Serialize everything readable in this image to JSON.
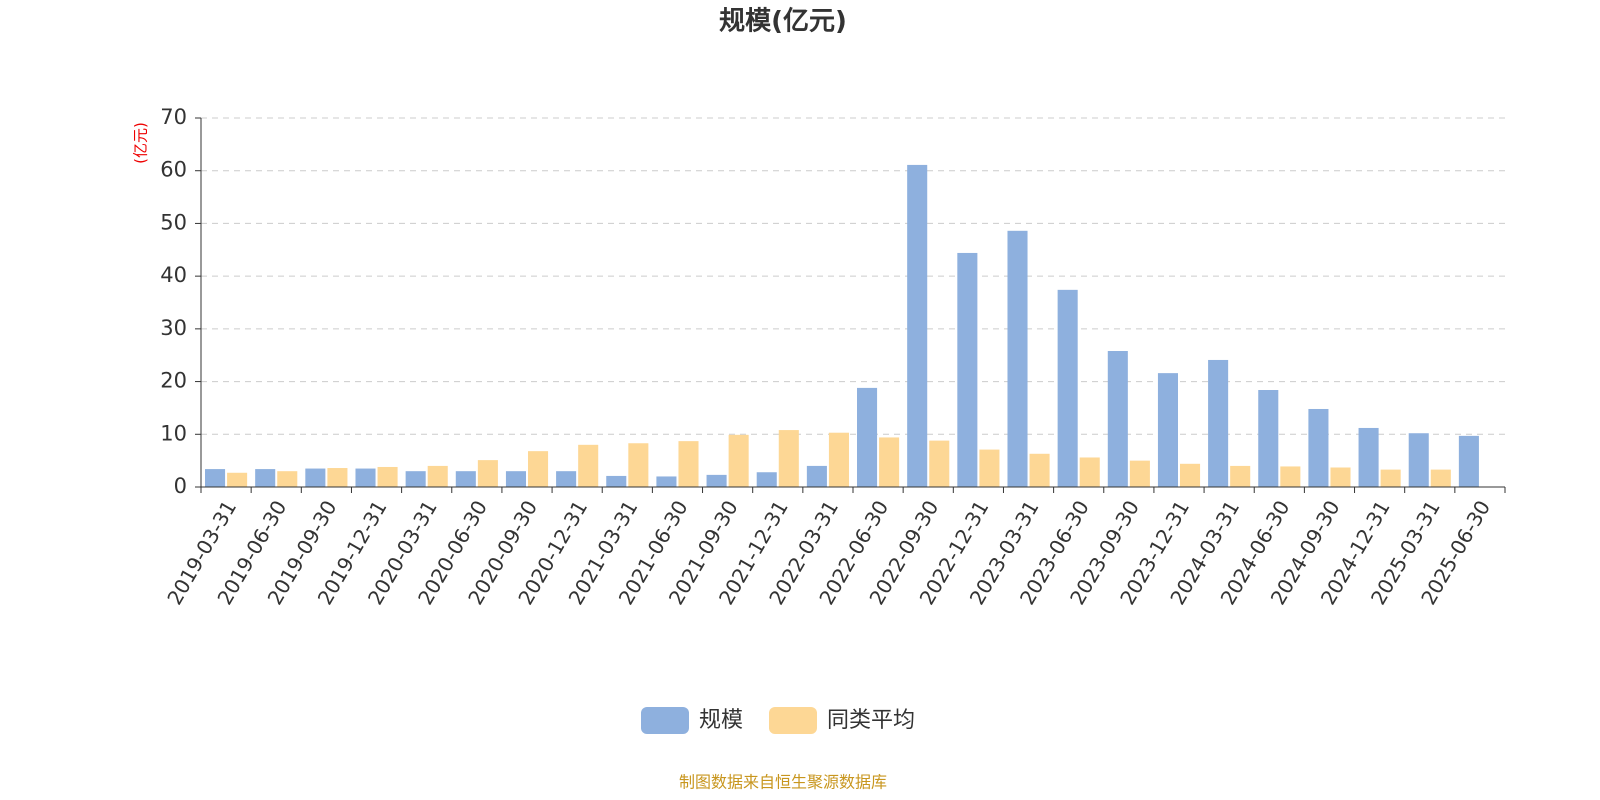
{
  "chart_data": {
    "type": "bar",
    "title": "规模(亿元)",
    "y_label": "(亿元)",
    "source_note": "制图数据来自恒生聚源数据库",
    "categories": [
      "2019-03-31",
      "2019-06-30",
      "2019-09-30",
      "2019-12-31",
      "2020-03-31",
      "2020-06-30",
      "2020-09-30",
      "2020-12-31",
      "2021-03-31",
      "2021-06-30",
      "2021-09-30",
      "2021-12-31",
      "2022-03-31",
      "2022-06-30",
      "2022-09-30",
      "2022-12-31",
      "2023-03-31",
      "2023-06-30",
      "2023-09-30",
      "2023-12-31",
      "2024-03-31",
      "2024-06-30",
      "2024-09-30",
      "2024-12-31",
      "2025-03-31",
      "2025-06-30"
    ],
    "series": [
      {
        "name": "规模",
        "color": "#8eb0de",
        "values": [
          3.4,
          3.4,
          3.5,
          3.5,
          3.0,
          3.0,
          3.0,
          3.0,
          2.1,
          2.0,
          2.3,
          2.8,
          4.0,
          18.8,
          61.1,
          44.4,
          48.6,
          37.4,
          25.8,
          21.6,
          24.1,
          18.4,
          14.8,
          11.2,
          10.2,
          9.7
        ]
      },
      {
        "name": "同类平均",
        "color": "#fdd795",
        "values": [
          2.7,
          3.0,
          3.6,
          3.8,
          4.0,
          5.1,
          6.8,
          8.0,
          8.3,
          8.7,
          9.9,
          10.8,
          10.3,
          9.4,
          8.8,
          7.1,
          6.3,
          5.6,
          5.0,
          4.4,
          4.0,
          3.9,
          3.7,
          3.3,
          3.3,
          null
        ]
      }
    ],
    "ylim": [
      0,
      70
    ],
    "yticks": [
      0,
      10,
      20,
      30,
      40,
      50,
      60,
      70
    ],
    "grid": true,
    "legend": "bottom"
  }
}
